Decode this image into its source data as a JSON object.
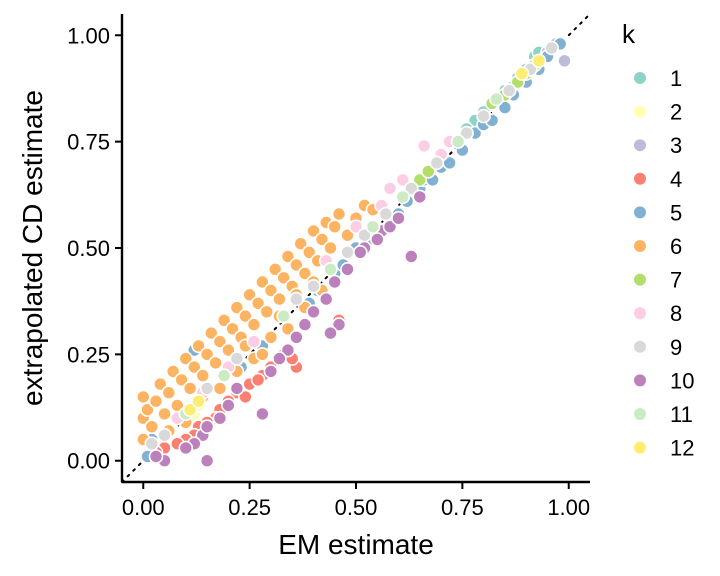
{
  "chart_data": {
    "type": "scatter",
    "title": "",
    "xlabel": "EM estimate",
    "ylabel": "extrapolated CD estimate",
    "xlim": [
      -0.05,
      1.05
    ],
    "ylim": [
      -0.05,
      1.05
    ],
    "xticks": [
      0.0,
      0.25,
      0.5,
      0.75,
      1.0
    ],
    "yticks": [
      0.0,
      0.25,
      0.5,
      0.75,
      1.0
    ],
    "xtick_labels": [
      "0.00",
      "0.25",
      "0.50",
      "0.75",
      "1.00"
    ],
    "ytick_labels": [
      "0.00",
      "0.25",
      "0.50",
      "0.75",
      "1.00"
    ],
    "reference_line": {
      "slope": 1,
      "intercept": 0,
      "style": "dotted",
      "color": "#000000"
    },
    "grid": false,
    "legend": {
      "title": "k",
      "position": "right"
    },
    "series": [
      {
        "name": "1",
        "color": "#8DD3C7",
        "points": [
          [
            0.78,
            0.8
          ],
          [
            0.82,
            0.84
          ],
          [
            0.85,
            0.87
          ],
          [
            0.88,
            0.9
          ],
          [
            0.9,
            0.92
          ],
          [
            0.92,
            0.95
          ],
          [
            0.93,
            0.96
          ],
          [
            0.87,
            0.88
          ],
          [
            0.8,
            0.82
          ],
          [
            0.76,
            0.78
          ]
        ]
      },
      {
        "name": "2",
        "color": "#FFFFB3",
        "points": [
          [
            0.11,
            0.12
          ],
          [
            0.12,
            0.11
          ],
          [
            0.09,
            0.1
          ],
          [
            0.13,
            0.13
          ]
        ]
      },
      {
        "name": "3",
        "color": "#BEBADA",
        "points": [
          [
            0.99,
            0.94
          ],
          [
            0.97,
            0.98
          ],
          [
            0.95,
            0.96
          ]
        ]
      },
      {
        "name": "4",
        "color": "#FB8072",
        "points": [
          [
            0.46,
            0.33
          ],
          [
            0.36,
            0.22
          ],
          [
            0.33,
            0.25
          ],
          [
            0.35,
            0.24
          ],
          [
            0.3,
            0.22
          ],
          [
            0.28,
            0.2
          ],
          [
            0.25,
            0.18
          ],
          [
            0.22,
            0.16
          ],
          [
            0.2,
            0.14
          ],
          [
            0.18,
            0.12
          ],
          [
            0.17,
            0.1
          ],
          [
            0.15,
            0.09
          ],
          [
            0.13,
            0.08
          ],
          [
            0.12,
            0.06
          ],
          [
            0.1,
            0.05
          ],
          [
            0.08,
            0.04
          ],
          [
            0.05,
            0.03
          ],
          [
            0.03,
            0.02
          ],
          [
            0.27,
            0.19
          ],
          [
            0.24,
            0.15
          ]
        ]
      },
      {
        "name": "5",
        "color": "#80B1D3",
        "points": [
          [
            0.12,
            0.26
          ],
          [
            0.02,
            0.05
          ],
          [
            0.01,
            0.01
          ],
          [
            0.23,
            0.22
          ],
          [
            0.28,
            0.27
          ],
          [
            0.39,
            0.37
          ],
          [
            0.41,
            0.4
          ],
          [
            0.45,
            0.44
          ],
          [
            0.5,
            0.5
          ],
          [
            0.55,
            0.53
          ],
          [
            0.58,
            0.57
          ],
          [
            0.6,
            0.58
          ],
          [
            0.62,
            0.61
          ],
          [
            0.65,
            0.64
          ],
          [
            0.66,
            0.66
          ],
          [
            0.68,
            0.66
          ],
          [
            0.7,
            0.69
          ],
          [
            0.72,
            0.7
          ],
          [
            0.75,
            0.73
          ],
          [
            0.78,
            0.77
          ],
          [
            0.8,
            0.79
          ],
          [
            0.82,
            0.8
          ],
          [
            0.85,
            0.83
          ],
          [
            0.87,
            0.86
          ],
          [
            0.9,
            0.89
          ],
          [
            0.93,
            0.92
          ],
          [
            0.95,
            0.95
          ],
          [
            0.98,
            0.98
          ],
          [
            0.47,
            0.46
          ],
          [
            0.53,
            0.52
          ]
        ]
      },
      {
        "name": "6",
        "color": "#FDB462",
        "points": [
          [
            0.0,
            0.15
          ],
          [
            0.0,
            0.1
          ],
          [
            0.0,
            0.05
          ],
          [
            0.01,
            0.12
          ],
          [
            0.02,
            0.08
          ],
          [
            0.03,
            0.14
          ],
          [
            0.04,
            0.18
          ],
          [
            0.05,
            0.11
          ],
          [
            0.06,
            0.16
          ],
          [
            0.07,
            0.21
          ],
          [
            0.08,
            0.13
          ],
          [
            0.09,
            0.19
          ],
          [
            0.1,
            0.24
          ],
          [
            0.11,
            0.17
          ],
          [
            0.12,
            0.22
          ],
          [
            0.13,
            0.27
          ],
          [
            0.14,
            0.2
          ],
          [
            0.15,
            0.25
          ],
          [
            0.16,
            0.3
          ],
          [
            0.17,
            0.23
          ],
          [
            0.18,
            0.28
          ],
          [
            0.19,
            0.33
          ],
          [
            0.2,
            0.26
          ],
          [
            0.21,
            0.31
          ],
          [
            0.22,
            0.36
          ],
          [
            0.23,
            0.29
          ],
          [
            0.24,
            0.34
          ],
          [
            0.25,
            0.39
          ],
          [
            0.26,
            0.32
          ],
          [
            0.27,
            0.37
          ],
          [
            0.28,
            0.42
          ],
          [
            0.29,
            0.35
          ],
          [
            0.3,
            0.4
          ],
          [
            0.31,
            0.45
          ],
          [
            0.32,
            0.38
          ],
          [
            0.33,
            0.43
          ],
          [
            0.34,
            0.48
          ],
          [
            0.35,
            0.41
          ],
          [
            0.36,
            0.46
          ],
          [
            0.37,
            0.51
          ],
          [
            0.38,
            0.44
          ],
          [
            0.39,
            0.49
          ],
          [
            0.4,
            0.54
          ],
          [
            0.41,
            0.47
          ],
          [
            0.42,
            0.52
          ],
          [
            0.43,
            0.56
          ],
          [
            0.44,
            0.5
          ],
          [
            0.45,
            0.55
          ],
          [
            0.46,
            0.58
          ],
          [
            0.48,
            0.53
          ],
          [
            0.5,
            0.57
          ],
          [
            0.52,
            0.6
          ],
          [
            0.54,
            0.59
          ],
          [
            0.06,
            0.07
          ],
          [
            0.1,
            0.09
          ],
          [
            0.14,
            0.15
          ],
          [
            0.18,
            0.17
          ],
          [
            0.22,
            0.21
          ],
          [
            0.26,
            0.24
          ],
          [
            0.3,
            0.29
          ],
          [
            0.34,
            0.31
          ],
          [
            0.38,
            0.36
          ],
          [
            0.42,
            0.4
          ],
          [
            0.24,
            0.27
          ],
          [
            0.28,
            0.25
          ],
          [
            0.32,
            0.34
          ],
          [
            0.36,
            0.39
          ],
          [
            0.4,
            0.42
          ]
        ]
      },
      {
        "name": "7",
        "color": "#B3DE69",
        "points": [
          [
            0.65,
            0.66
          ],
          [
            0.67,
            0.68
          ],
          [
            0.82,
            0.84
          ],
          [
            0.85,
            0.86
          ],
          [
            0.88,
            0.89
          ],
          [
            0.9,
            0.91
          ],
          [
            0.92,
            0.93
          ]
        ]
      },
      {
        "name": "8",
        "color": "#FCCDE5",
        "points": [
          [
            0.58,
            0.64
          ],
          [
            0.61,
            0.66
          ],
          [
            0.66,
            0.74
          ],
          [
            0.5,
            0.55
          ],
          [
            0.43,
            0.47
          ],
          [
            0.26,
            0.28
          ],
          [
            0.2,
            0.22
          ],
          [
            0.14,
            0.16
          ],
          [
            0.08,
            0.1
          ],
          [
            0.7,
            0.72
          ],
          [
            0.72,
            0.75
          ],
          [
            0.56,
            0.6
          ]
        ]
      },
      {
        "name": "9",
        "color": "#D9D9D9",
        "points": [
          [
            0.02,
            0.04
          ],
          [
            0.05,
            0.06
          ],
          [
            0.15,
            0.17
          ],
          [
            0.22,
            0.24
          ],
          [
            0.36,
            0.38
          ],
          [
            0.4,
            0.41
          ],
          [
            0.48,
            0.49
          ],
          [
            0.52,
            0.53
          ],
          [
            0.57,
            0.58
          ],
          [
            0.63,
            0.64
          ],
          [
            0.69,
            0.7
          ],
          [
            0.76,
            0.77
          ],
          [
            0.8,
            0.81
          ],
          [
            0.86,
            0.87
          ],
          [
            0.91,
            0.92
          ],
          [
            0.96,
            0.97
          ]
        ]
      },
      {
        "name": "10",
        "color": "#BC80BD",
        "points": [
          [
            0.63,
            0.48
          ],
          [
            0.56,
            0.54
          ],
          [
            0.52,
            0.5
          ],
          [
            0.55,
            0.52
          ],
          [
            0.58,
            0.55
          ],
          [
            0.51,
            0.49
          ],
          [
            0.48,
            0.45
          ],
          [
            0.45,
            0.42
          ],
          [
            0.43,
            0.38
          ],
          [
            0.4,
            0.35
          ],
          [
            0.38,
            0.32
          ],
          [
            0.36,
            0.29
          ],
          [
            0.34,
            0.26
          ],
          [
            0.32,
            0.24
          ],
          [
            0.3,
            0.21
          ],
          [
            0.28,
            0.11
          ],
          [
            0.22,
            0.17
          ],
          [
            0.2,
            0.13
          ],
          [
            0.18,
            0.1
          ],
          [
            0.15,
            0.0
          ],
          [
            0.14,
            0.06
          ],
          [
            0.12,
            0.04
          ],
          [
            0.1,
            0.03
          ],
          [
            0.05,
            0.0
          ],
          [
            0.03,
            0.01
          ],
          [
            0.15,
            0.08
          ],
          [
            0.46,
            0.32
          ],
          [
            0.44,
            0.3
          ],
          [
            0.65,
            0.62
          ],
          [
            0.6,
            0.57
          ]
        ]
      },
      {
        "name": "11",
        "color": "#CCEBC5",
        "points": [
          [
            0.1,
            0.11
          ],
          [
            0.19,
            0.2
          ],
          [
            0.33,
            0.34
          ],
          [
            0.44,
            0.45
          ],
          [
            0.54,
            0.55
          ],
          [
            0.61,
            0.62
          ],
          [
            0.74,
            0.75
          ],
          [
            0.83,
            0.85
          ]
        ]
      },
      {
        "name": "12",
        "color": "#FFED6F",
        "points": [
          [
            0.11,
            0.12
          ],
          [
            0.13,
            0.14
          ],
          [
            0.89,
            0.91
          ],
          [
            0.93,
            0.94
          ]
        ]
      }
    ]
  }
}
